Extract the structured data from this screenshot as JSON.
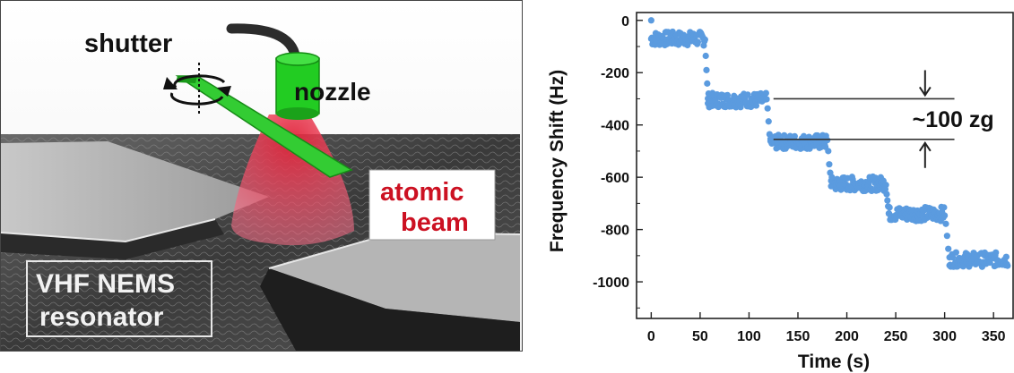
{
  "schematic": {
    "labels": {
      "shutter": "shutter",
      "nozzle": "nozzle",
      "atomic_line1": "atomic",
      "atomic_line2": "beam",
      "vhf_line1": "VHF NEMS",
      "vhf_line2": "resonator"
    },
    "colors": {
      "nozzle": "#22cc22",
      "beam": "#d81b2a",
      "atomic_text": "#cc1122",
      "shutter": "#33cc33"
    }
  },
  "chart_data": {
    "type": "scatter",
    "title": "",
    "xlabel": "Time (s)",
    "ylabel": "Frequency Shift  (Hz)",
    "xlim": [
      -15,
      370
    ],
    "ylim": [
      -1140,
      30
    ],
    "x_ticks": [
      0,
      50,
      100,
      150,
      200,
      250,
      300,
      350
    ],
    "y_ticks": [
      0,
      -200,
      -400,
      -600,
      -800,
      -1000
    ],
    "marker_color": "#5b9bdf",
    "annotation": "~100 zg",
    "annotation_levels": [
      -300,
      -455
    ],
    "annotation_x": 280,
    "segments": [
      {
        "x_start": 0,
        "x_end": 55,
        "level": -70
      },
      {
        "x_start": 58,
        "x_end": 118,
        "level": -305
      },
      {
        "x_start": 122,
        "x_end": 180,
        "level": -465
      },
      {
        "x_start": 184,
        "x_end": 240,
        "level": -625
      },
      {
        "x_start": 243,
        "x_end": 300,
        "level": -740
      },
      {
        "x_start": 305,
        "x_end": 365,
        "level": -915
      }
    ]
  }
}
